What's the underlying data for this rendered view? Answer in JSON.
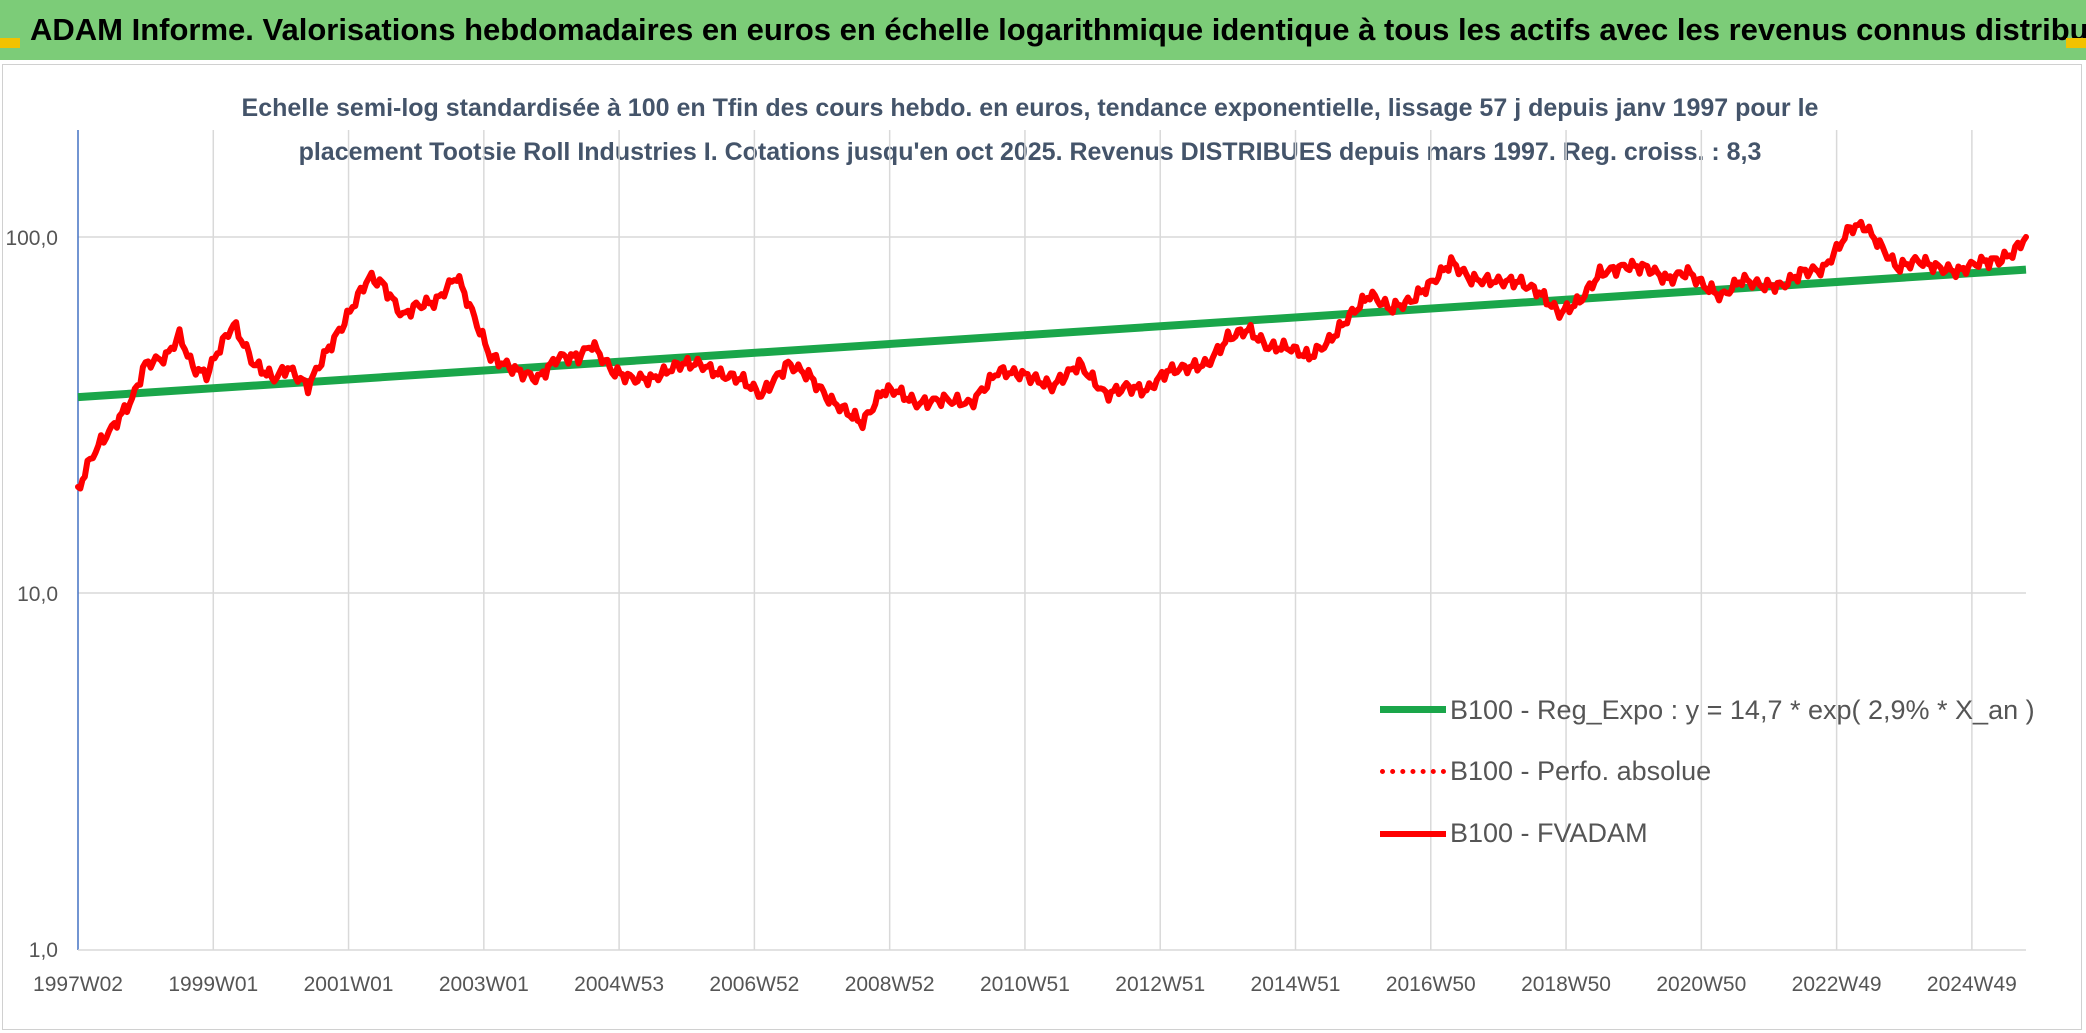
{
  "header": {
    "title": "ADAM Informe. Valorisations hebdomadaires en euros en échelle logarithmique identique à tous les actifs avec les revenus connus distribués"
  },
  "colors": {
    "header_bg": "#7ccc78",
    "trend": "#1aa64a",
    "series": "#ff0000",
    "grid": "#d9d9d9",
    "axis": "#4472c4",
    "title_text": "#44546a",
    "corner": "#f2c200"
  },
  "chart_data": {
    "type": "line",
    "title_line1": "Echelle semi-log standardisée à 100 en Tfin des cours hebdo. en euros, tendance exponentielle, lissage 57 j depuis janv 1997 pour le",
    "title_line2": "placement Tootsie Roll Industries I. Cotations jusqu'en oct 2025. Revenus DISTRIBUES depuis mars 1997. Reg. croiss. : 8,3",
    "y_scale": "log",
    "ylim": [
      1,
      180
    ],
    "y_ticks": [
      {
        "value": 100,
        "label": "100,0"
      },
      {
        "value": 10,
        "label": "10,0"
      },
      {
        "value": 1,
        "label": "1,0"
      }
    ],
    "xlim": [
      1997.0,
      2025.8
    ],
    "x_ticks": [
      {
        "t": 1997.0,
        "label": "1997W02"
      },
      {
        "t": 1999.0,
        "label": "1999W01"
      },
      {
        "t": 2001.0,
        "label": "2001W01"
      },
      {
        "t": 2003.0,
        "label": "2003W01"
      },
      {
        "t": 2005.0,
        "label": "2004W53"
      },
      {
        "t": 2007.0,
        "label": "2006W52"
      },
      {
        "t": 2009.0,
        "label": "2008W52"
      },
      {
        "t": 2011.0,
        "label": "2010W51"
      },
      {
        "t": 2013.0,
        "label": "2012W51"
      },
      {
        "t": 2015.0,
        "label": "2014W51"
      },
      {
        "t": 2017.0,
        "label": "2016W50"
      },
      {
        "t": 2019.0,
        "label": "2018W50"
      },
      {
        "t": 2021.0,
        "label": "2020W50"
      },
      {
        "t": 2023.0,
        "label": "2022W49"
      },
      {
        "t": 2025.0,
        "label": "2024W49"
      }
    ],
    "legend_position": "bottom-right",
    "series": [
      {
        "name": "B100 - Reg_Expo : y = 14,7 * exp( 2,9% *  X_an )",
        "style": "trend",
        "color": "#1aa64a",
        "x": [
          1997.0,
          2025.8
        ],
        "y": [
          35.5,
          81.0
        ]
      },
      {
        "name": "B100 - Perfo. absolue",
        "style": "dotted",
        "color": "#ff0000",
        "x": [],
        "y": []
      },
      {
        "name": "B100 - FVADAM",
        "style": "solid",
        "color": "#ff0000",
        "x": [
          1997.0,
          1997.1,
          1997.3,
          1997.5,
          1997.8,
          1998.0,
          1998.3,
          1998.5,
          1998.7,
          1998.9,
          1999.1,
          1999.3,
          1999.6,
          1999.9,
          2000.1,
          2000.4,
          2000.6,
          2000.9,
          2001.1,
          2001.3,
          2001.5,
          2001.8,
          2002.0,
          2002.3,
          2002.6,
          2002.9,
          2003.1,
          2003.5,
          2003.8,
          2004.1,
          2004.4,
          2004.6,
          2004.9,
          2005.2,
          2005.5,
          2005.9,
          2006.2,
          2006.5,
          2006.8,
          2007.1,
          2007.5,
          2007.8,
          2008.1,
          2008.3,
          2008.6,
          2008.9,
          2009.1,
          2009.4,
          2009.8,
          2010.2,
          2010.6,
          2011.0,
          2011.4,
          2011.8,
          2012.2,
          2012.5,
          2012.8,
          2013.1,
          2013.4,
          2013.7,
          2014.0,
          2014.3,
          2014.6,
          2014.9,
          2015.2,
          2015.5,
          2015.8,
          2016.1,
          2016.4,
          2016.7,
          2017.0,
          2017.3,
          2017.6,
          2018.0,
          2018.3,
          2018.6,
          2018.9,
          2019.2,
          2019.5,
          2019.9,
          2020.2,
          2020.5,
          2020.8,
          2021.0,
          2021.3,
          2021.6,
          2021.9,
          2022.2,
          2022.5,
          2022.8,
          2023.0,
          2023.2,
          2023.4,
          2023.6,
          2023.9,
          2024.2,
          2024.5,
          2024.8,
          2025.1,
          2025.4,
          2025.6,
          2025.8
        ],
        "y": [
          19,
          22,
          26,
          29,
          35,
          44,
          46,
          53,
          43,
          41,
          49,
          57,
          44,
          40,
          43,
          38,
          45,
          56,
          66,
          77,
          74,
          60,
          64,
          66,
          78,
          57,
          46,
          42,
          40,
          46,
          46,
          50,
          42,
          40,
          40,
          44,
          44,
          41,
          40,
          36,
          44,
          41,
          35,
          33,
          30,
          37,
          37,
          34,
          35,
          34,
          42,
          41,
          38,
          44,
          36,
          38,
          37,
          42,
          43,
          44,
          52,
          55,
          49,
          49,
          46,
          51,
          60,
          69,
          63,
          66,
          74,
          85,
          76,
          75,
          75,
          70,
          61,
          66,
          79,
          83,
          82,
          76,
          80,
          74,
          68,
          76,
          73,
          73,
          80,
          81,
          92,
          106,
          108,
          97,
          82,
          86,
          82,
          80,
          85,
          86,
          90,
          100
        ]
      }
    ]
  },
  "legend": {
    "items": [
      {
        "label": "B100 - Reg_Expo : y = 14,7 * exp( 2,9% *  X_an )",
        "color": "#1aa64a",
        "style": "solid-thick"
      },
      {
        "label": "B100 - Perfo. absolue",
        "color": "#ff0000",
        "style": "dotted"
      },
      {
        "label": "B100 - FVADAM",
        "color": "#ff0000",
        "style": "solid"
      }
    ]
  }
}
